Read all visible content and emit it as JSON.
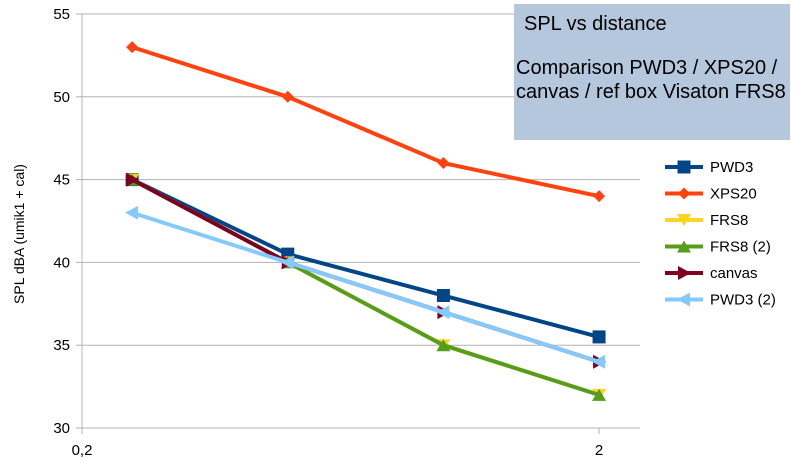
{
  "chart_data": {
    "type": "line",
    "title": "SPL vs distance",
    "subtitle": "Comparison PWD3 / XPS20 / canvas / ref box Visaton FRS8",
    "xlabel": "",
    "ylabel": "SPL dBA (umik1 + cal)",
    "x_scale": "log",
    "xlim": [
      0.2,
      2.4
    ],
    "ylim": [
      30,
      55
    ],
    "x_tick_labels": [
      "0,2",
      "2"
    ],
    "y_ticks": [
      30,
      35,
      40,
      45,
      50,
      55
    ],
    "legend_position": "right",
    "grid": "horizontal",
    "series": [
      {
        "name": "PWD3",
        "color": "#004586",
        "marker": "square",
        "x": [
          0.25,
          0.5,
          1,
          2
        ],
        "y": [
          45,
          40.5,
          38,
          35.5
        ]
      },
      {
        "name": "XPS20",
        "color": "#ff420e",
        "marker": "diamond",
        "x": [
          0.25,
          0.5,
          1,
          2
        ],
        "y": [
          53,
          50,
          46,
          44
        ]
      },
      {
        "name": "FRS8",
        "color": "#ffd320",
        "marker": "triangle-down",
        "x": [
          0.25,
          0.5,
          1,
          2
        ],
        "y": [
          45,
          40,
          35,
          32
        ]
      },
      {
        "name": "FRS8 (2)",
        "color": "#579d1c",
        "marker": "triangle-up",
        "x": [
          0.25,
          0.5,
          1,
          2
        ],
        "y": [
          45,
          40,
          35,
          32
        ]
      },
      {
        "name": "canvas",
        "color": "#7e0021",
        "marker": "triangle-right",
        "x": [
          0.25,
          0.5,
          1,
          2
        ],
        "y": [
          45,
          40,
          37,
          34
        ]
      },
      {
        "name": "PWD3 (2)",
        "color": "#83caff",
        "marker": "triangle-left",
        "x": [
          0.25,
          0.5,
          1,
          2
        ],
        "y": [
          43,
          40,
          37,
          34
        ]
      }
    ]
  }
}
